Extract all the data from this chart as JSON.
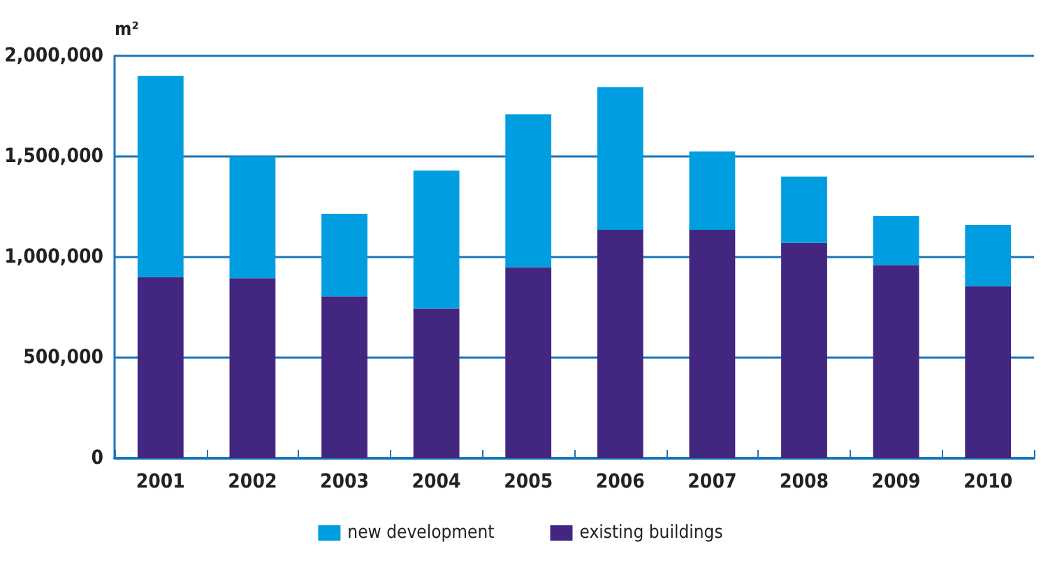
{
  "chart_data": {
    "type": "bar",
    "ylabel": "m²",
    "stacked": true,
    "categories": [
      "2001",
      "2002",
      "2003",
      "2004",
      "2005",
      "2006",
      "2007",
      "2008",
      "2009",
      "2010"
    ],
    "series": [
      {
        "name": "existing buildings",
        "color": "#432680",
        "values": [
          900000,
          895000,
          805000,
          745000,
          950000,
          1135000,
          1135000,
          1070000,
          960000,
          855000
        ]
      },
      {
        "name": "new development",
        "color": "#009ee0",
        "values": [
          1000000,
          605000,
          410000,
          685000,
          760000,
          710000,
          390000,
          330000,
          245000,
          305000
        ]
      }
    ],
    "ylim": [
      0,
      2000000
    ],
    "yticks": [
      0,
      {
        "value": 500000,
        "label": "500,000"
      },
      {
        "value": 1000000,
        "label": "1,000,000"
      },
      {
        "value": 1500000,
        "label": "1,500,000"
      },
      {
        "value": 2000000,
        "label": "2,000,000"
      }
    ],
    "grid": "y",
    "legend": "bottom"
  }
}
